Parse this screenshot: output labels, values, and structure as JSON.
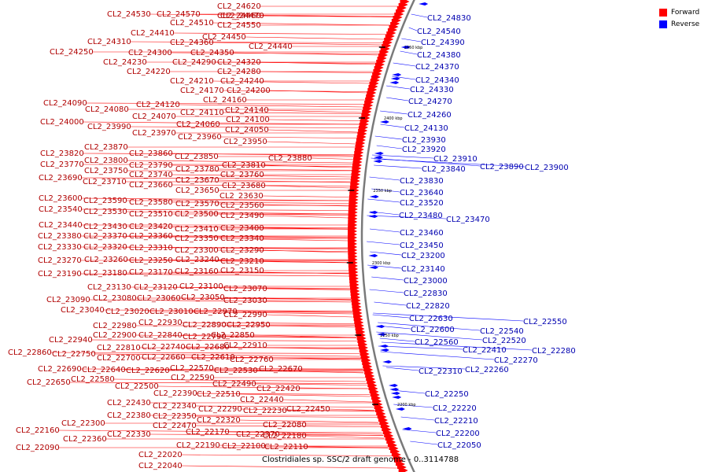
{
  "caption": "Clostridiales sp. SSC/2 draft genome - 0..3114788",
  "legend": [
    {
      "label": "Forward",
      "color": "#ff0000"
    },
    {
      "label": "Reverse",
      "color": "#0000ff"
    }
  ],
  "colors": {
    "forward": "#ff0000",
    "reverse": "#0000ff",
    "backbone": "#808080",
    "forward_label": "#b00000",
    "reverse_label": "#0000b0"
  },
  "ticks": [
    "2450 kbp",
    "2400 kbp",
    "2350 kbp",
    "2300 kbp",
    "2250 kbp",
    "2200 kbp"
  ],
  "forward_genes": [
    "CL2_24620",
    "CL2_24470",
    "CL2_24530",
    "CL2_24570",
    "CL2_24460",
    "CL2_24510",
    "CL2_24550",
    "CL2_24410",
    "CL2_24450",
    "CL2_24440",
    "CL2_24310",
    "CL2_24360",
    "CL2_24250",
    "CL2_24300",
    "CL2_24350",
    "CL2_24230",
    "CL2_24290",
    "CL2_24320",
    "CL2_24220",
    "CL2_24280",
    "CL2_24210",
    "CL2_24240",
    "CL2_24170",
    "CL2_24200",
    "CL2_24160",
    "CL2_24090",
    "CL2_24120",
    "CL2_24080",
    "CL2_24110",
    "CL2_24140",
    "CL2_24070",
    "CL2_24100",
    "CL2_24000",
    "CL2_24060",
    "CL2_23990",
    "CL2_24050",
    "CL2_23970",
    "CL2_23960",
    "CL2_23950",
    "CL2_23870",
    "CL2_23820",
    "CL2_23860",
    "CL2_23850",
    "CL2_23880",
    "CL2_23800",
    "CL2_23770",
    "CL2_23790",
    "CL2_23810",
    "CL2_23750",
    "CL2_23780",
    "CL2_23740",
    "CL2_23760",
    "CL2_23690",
    "CL2_23670",
    "CL2_23710",
    "CL2_23660",
    "CL2_23680",
    "CL2_23650",
    "CL2_23630",
    "CL2_23600",
    "CL2_23590",
    "CL2_23580",
    "CL2_23570",
    "CL2_23560",
    "CL2_23540",
    "CL2_23530",
    "CL2_23510",
    "CL2_23500",
    "CL2_23490",
    "CL2_23440",
    "CL2_23430",
    "CL2_23420",
    "CL2_23410",
    "CL2_23400",
    "CL2_23380",
    "CL2_23370",
    "CL2_23360",
    "CL2_23350",
    "CL2_23340",
    "CL2_23330",
    "CL2_23320",
    "CL2_23310",
    "CL2_23300",
    "CL2_23290",
    "CL2_23270",
    "CL2_23260",
    "CL2_23250",
    "CL2_23240",
    "CL2_23210",
    "CL2_23190",
    "CL2_23180",
    "CL2_23170",
    "CL2_23160",
    "CL2_23150",
    "CL2_23130",
    "CL2_23120",
    "CL2_23100",
    "CL2_23070",
    "CL2_23090",
    "CL2_23080",
    "CL2_23060",
    "CL2_23050",
    "CL2_23030",
    "CL2_23040",
    "CL2_23020",
    "CL2_23010",
    "CL2_22970",
    "CL2_22990",
    "CL2_22980",
    "CL2_22930",
    "CL2_22890",
    "CL2_22950",
    "CL2_22940",
    "CL2_22900",
    "CL2_22840",
    "CL2_22790",
    "CL2_22850",
    "CL2_22810",
    "CL2_22740",
    "CL2_22680",
    "CL2_22910",
    "CL2_22860",
    "CL2_22750",
    "CL2_22700",
    "CL2_22660",
    "CL2_22610",
    "CL2_22760",
    "CL2_22690",
    "CL2_22640",
    "CL2_22620",
    "CL2_22570",
    "CL2_22530",
    "CL2_22670",
    "CL2_22650",
    "CL2_22580",
    "CL2_22590",
    "CL2_22490",
    "CL2_22500",
    "CL2_22420",
    "CL2_22390",
    "CL2_22510",
    "CL2_22430",
    "CL2_22340",
    "CL2_22440",
    "CL2_22380",
    "CL2_22350",
    "CL2_22290",
    "CL2_22230",
    "CL2_22450",
    "CL2_22320",
    "CL2_22300",
    "CL2_22470",
    "CL2_22160",
    "CL2_22360",
    "CL2_22330",
    "CL2_22170",
    "CL2_22080",
    "CL2_22370",
    "CL2_22180",
    "CL2_22090",
    "CL2_22020",
    "CL2_22190",
    "CL2_22100",
    "CL2_22110",
    "CL2_22040"
  ],
  "reverse_genes": [
    "CL2_24830",
    "CL2_24540",
    "CL2_24390",
    "CL2_24380",
    "CL2_24370",
    "CL2_24340",
    "CL2_24330",
    "CL2_24270",
    "CL2_24260",
    "CL2_24130",
    "CL2_23930",
    "CL2_23920",
    "CL2_23910",
    "CL2_23840",
    "CL2_23890",
    "CL2_23900",
    "CL2_23830",
    "CL2_23640",
    "CL2_23520",
    "CL2_23480",
    "CL2_23470",
    "CL2_23460",
    "CL2_23450",
    "CL2_23200",
    "CL2_23140",
    "CL2_23000",
    "CL2_22830",
    "CL2_22820",
    "CL2_22630",
    "CL2_22600",
    "CL2_22550",
    "CL2_22540",
    "CL2_22520",
    "CL2_22560",
    "CL2_22410",
    "CL2_22280",
    "CL2_22270",
    "CL2_22310",
    "CL2_22260",
    "CL2_22250",
    "CL2_22220",
    "CL2_22210",
    "CL2_22200",
    "CL2_22050"
  ]
}
